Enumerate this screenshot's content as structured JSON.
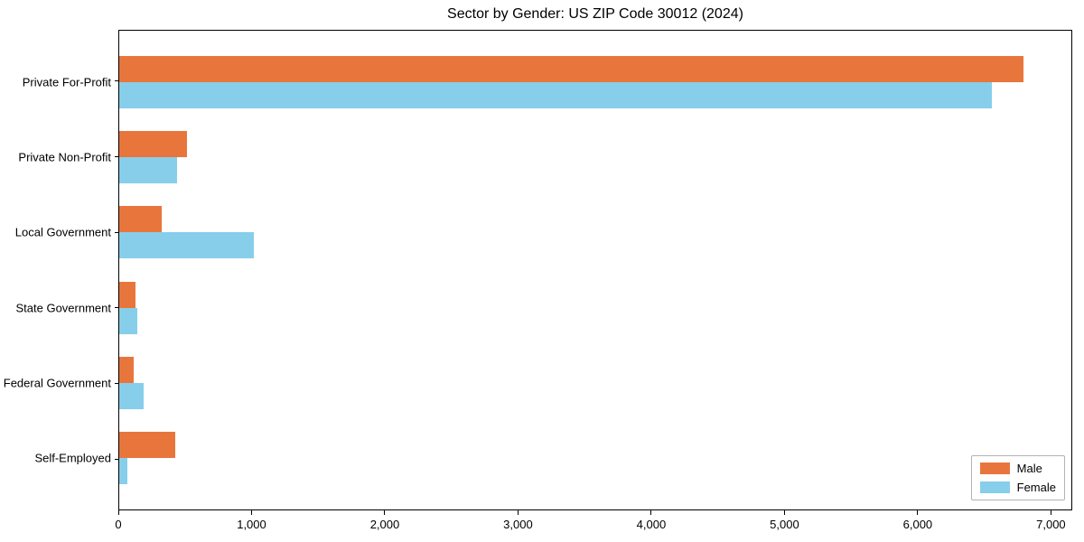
{
  "chart_data": {
    "type": "bar",
    "orientation": "horizontal",
    "title": "Sector by Gender: US ZIP Code 30012 (2024)",
    "categories": [
      "Private For-Profit",
      "Private Non-Profit",
      "Local Government",
      "State Government",
      "Federal Government",
      "Self-Employed"
    ],
    "series": [
      {
        "name": "Male",
        "color": "#E8763C",
        "values": [
          6800,
          510,
          320,
          120,
          110,
          420
        ]
      },
      {
        "name": "Female",
        "color": "#87CEEB",
        "values": [
          6560,
          435,
          1010,
          135,
          185,
          60
        ]
      }
    ],
    "xlabel": "",
    "ylabel": "",
    "xlim": [
      0,
      7160
    ],
    "xticks": [
      0,
      1000,
      2000,
      3000,
      4000,
      5000,
      6000,
      7000
    ],
    "xtick_labels": [
      "0",
      "1,000",
      "2,000",
      "3,000",
      "4,000",
      "5,000",
      "6,000",
      "7,000"
    ],
    "grid": false,
    "legend_position": "lower right"
  }
}
